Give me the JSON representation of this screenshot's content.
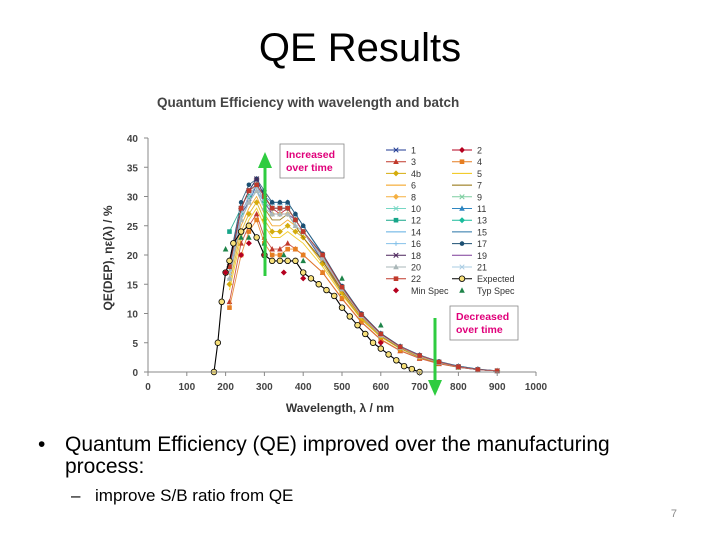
{
  "slide": {
    "title": "QE Results",
    "bullet_1": "Quantum Efficiency (QE) improved over the manufacturing process:",
    "bullet_2": "improve S/B ratio from QE",
    "page_number": "7"
  },
  "chart_data": {
    "type": "line",
    "title": "Quantum Efficiency with wavelength and batch",
    "xlabel": "Wavelength, λ / nm",
    "ylabel": "QE(DEP), ηε(λ) / %",
    "xlim": [
      0,
      1000
    ],
    "ylim": [
      0,
      40
    ],
    "x_ticks": [
      "0",
      "100",
      "200",
      "300",
      "400",
      "500",
      "600",
      "700",
      "800",
      "900",
      "1000"
    ],
    "y_ticks": [
      "0",
      "5",
      "10",
      "15",
      "20",
      "25",
      "30",
      "35",
      "40"
    ],
    "grid": false,
    "legend_position": "top-right",
    "annotations": [
      {
        "text": "Increased over time",
        "color": "#e0007a",
        "arrow": "up"
      },
      {
        "text": "Decreased over time",
        "color": "#e0007a",
        "arrow": "down"
      }
    ],
    "series": [
      {
        "name": "1",
        "color": "#1f3a93",
        "marker": "x",
        "x": [
          210,
          240,
          260,
          280,
          300,
          320,
          340,
          360,
          380,
          400,
          450,
          500,
          550,
          600,
          650,
          700,
          750,
          800,
          850,
          900
        ],
        "y": [
          17,
          27,
          29,
          32,
          29,
          28,
          28,
          28,
          26,
          24,
          19,
          13.5,
          9,
          6,
          4,
          2.5,
          1.5,
          0.8,
          0.4,
          0.2
        ]
      },
      {
        "name": "2",
        "color": "#b5001f",
        "marker": "diamond",
        "x": [
          210,
          240,
          260,
          280,
          300,
          320,
          340,
          360,
          380,
          400,
          450,
          500,
          550,
          600,
          650,
          700,
          750,
          800,
          850,
          900
        ],
        "y": [
          18,
          28,
          31,
          33,
          30,
          28,
          27,
          28,
          26,
          24,
          19.5,
          14,
          9.5,
          6.2,
          4.2,
          2.7,
          1.6,
          0.9,
          0.4,
          0.2
        ]
      },
      {
        "name": "3",
        "color": "#c0392b",
        "marker": "triangle",
        "x": [
          210,
          240,
          260,
          280,
          300,
          320,
          340,
          360,
          380,
          400,
          450,
          500,
          550,
          600,
          650,
          700,
          750,
          800,
          850,
          900
        ],
        "y": [
          12,
          22,
          25,
          27,
          23,
          21,
          21,
          22,
          21,
          20,
          17,
          12.5,
          8.5,
          5.5,
          3.6,
          2.3,
          1.4,
          0.8,
          0.4,
          0.2
        ]
      },
      {
        "name": "4",
        "color": "#e67e22",
        "marker": "square",
        "x": [
          210,
          240,
          260,
          280,
          300,
          320,
          340,
          360,
          380,
          400,
          450,
          500,
          550,
          600,
          650,
          700,
          750,
          800,
          850,
          900
        ],
        "y": [
          11,
          20,
          24,
          26,
          22,
          20,
          20,
          21,
          21,
          20,
          17,
          12.6,
          8.6,
          5.6,
          3.7,
          2.4,
          1.5,
          0.8,
          0.4,
          0.2
        ]
      },
      {
        "name": "4b",
        "color": "#d4ac0d",
        "marker": "diamond",
        "x": [
          210,
          240,
          260,
          280,
          300,
          320,
          340,
          360,
          380,
          400,
          450,
          500,
          550,
          600,
          650,
          700,
          750,
          800,
          850,
          900
        ],
        "y": [
          15,
          24,
          27,
          29,
          26,
          24,
          24,
          25,
          24,
          23,
          18.5,
          13.5,
          9.2,
          6,
          4,
          2.6,
          1.6,
          0.9,
          0.4,
          0.2
        ]
      },
      {
        "name": "5",
        "color": "#f1c40f",
        "marker": "none",
        "x": [
          210,
          240,
          260,
          280,
          300,
          320,
          340,
          360,
          380,
          400,
          450,
          500,
          550,
          600,
          650,
          700,
          750,
          800,
          850,
          900
        ],
        "y": [
          14,
          23,
          26,
          28,
          25,
          23,
          23,
          24,
          23,
          22,
          18,
          13.2,
          9,
          6,
          4,
          2.6,
          1.6,
          0.9,
          0.4,
          0.2
        ]
      },
      {
        "name": "6",
        "color": "#f39c12",
        "marker": "none",
        "x": [
          210,
          240,
          260,
          280,
          300,
          320,
          340,
          360,
          380,
          400,
          450,
          500,
          550,
          600,
          650,
          700,
          750,
          800,
          850,
          900
        ],
        "y": [
          16,
          25,
          28,
          30,
          27,
          25,
          25,
          26,
          25,
          23,
          19,
          13.8,
          9.4,
          6.2,
          4.1,
          2.7,
          1.6,
          0.9,
          0.4,
          0.2
        ]
      },
      {
        "name": "7",
        "color": "#8e6b00",
        "marker": "none",
        "x": [
          210,
          240,
          260,
          280,
          300,
          320,
          340,
          360,
          380,
          400,
          450,
          500,
          550,
          600,
          650,
          700,
          750,
          800,
          850,
          900
        ],
        "y": [
          16,
          26,
          29,
          31,
          28,
          26,
          26,
          27,
          25,
          23,
          19,
          14,
          9.5,
          6.2,
          4.1,
          2.7,
          1.6,
          0.9,
          0.4,
          0.2
        ]
      },
      {
        "name": "8",
        "color": "#f5b041",
        "marker": "diamond",
        "x": [
          210,
          240,
          260,
          280,
          300,
          320,
          340,
          360,
          380,
          400,
          450,
          500,
          550,
          600,
          650,
          700,
          750,
          800,
          850,
          900
        ],
        "y": [
          17,
          27,
          30,
          32,
          29,
          27,
          27,
          27,
          26,
          24,
          19.5,
          14.2,
          9.6,
          6.3,
          4.2,
          2.7,
          1.6,
          0.9,
          0.4,
          0.2
        ]
      },
      {
        "name": "9",
        "color": "#7dcea0",
        "marker": "star",
        "x": [
          210,
          240,
          260,
          280,
          300,
          320,
          340,
          360,
          380,
          400,
          450,
          500,
          550,
          600,
          650,
          700,
          750,
          800,
          850,
          900
        ],
        "y": [
          18,
          27,
          30,
          32,
          29,
          28,
          28,
          28,
          26,
          24,
          19.8,
          14.4,
          9.7,
          6.4,
          4.3,
          2.8,
          1.7,
          0.9,
          0.4,
          0.2
        ]
      },
      {
        "name": "10",
        "color": "#76d7c4",
        "marker": "x",
        "x": [
          210,
          240,
          260,
          280,
          300,
          320,
          340,
          360,
          380,
          400,
          450,
          500,
          550,
          600,
          650,
          700,
          750,
          800,
          850,
          900
        ],
        "y": [
          18,
          28,
          31,
          33,
          30,
          28,
          28,
          28,
          26,
          24,
          20,
          14.5,
          9.8,
          6.5,
          4.3,
          2.8,
          1.7,
          0.9,
          0.4,
          0.2
        ]
      },
      {
        "name": "11",
        "color": "#2e86c1",
        "marker": "triangle",
        "x": [
          210,
          240,
          260,
          280,
          300,
          320,
          340,
          360,
          380,
          400,
          450,
          500,
          550,
          600,
          650,
          700,
          750,
          800,
          850,
          900
        ],
        "y": [
          19,
          28,
          31,
          33,
          30,
          29,
          29,
          29,
          27,
          25,
          20,
          14.6,
          9.9,
          6.6,
          4.4,
          2.9,
          1.7,
          1,
          0.5,
          0.2
        ]
      },
      {
        "name": "12",
        "color": "#17a589",
        "marker": "square",
        "x": [
          210,
          240,
          260,
          280,
          300,
          320,
          340,
          360,
          380,
          400,
          450,
          500,
          550,
          600,
          650,
          700,
          750,
          800,
          850,
          900
        ],
        "y": [
          24,
          28,
          31,
          32,
          29,
          28,
          28,
          28,
          26,
          24,
          20,
          14.5,
          9.8,
          6.5,
          4.3,
          2.8,
          1.7,
          0.9,
          0.4,
          0.2
        ]
      },
      {
        "name": "13",
        "color": "#1abc9c",
        "marker": "diamond",
        "x": [
          210,
          240,
          260,
          280,
          300,
          320,
          340,
          360,
          380,
          400,
          450,
          500,
          550,
          600,
          650,
          700,
          750,
          800,
          850,
          900
        ],
        "y": [
          18,
          27,
          30,
          32,
          29,
          28,
          28,
          28,
          26,
          24,
          20,
          14.5,
          9.8,
          6.5,
          4.3,
          2.8,
          1.7,
          0.9,
          0.4,
          0.2
        ]
      },
      {
        "name": "14",
        "color": "#5dade2",
        "marker": "none",
        "x": [
          210,
          240,
          260,
          280,
          300,
          320,
          340,
          360,
          380,
          400,
          450,
          500,
          550,
          600,
          650,
          700,
          750,
          800,
          850,
          900
        ],
        "y": [
          17,
          27,
          30,
          31,
          29,
          27,
          27,
          27,
          26,
          24,
          19.8,
          14.4,
          9.7,
          6.4,
          4.3,
          2.8,
          1.7,
          0.9,
          0.4,
          0.2
        ]
      },
      {
        "name": "15",
        "color": "#2874a6",
        "marker": "none",
        "x": [
          210,
          240,
          260,
          280,
          300,
          320,
          340,
          360,
          380,
          400,
          450,
          500,
          550,
          600,
          650,
          700,
          750,
          800,
          850,
          900
        ],
        "y": [
          18,
          28,
          31,
          32,
          30,
          28,
          28,
          28,
          26,
          24,
          20,
          14.5,
          9.8,
          6.5,
          4.3,
          2.8,
          1.7,
          0.9,
          0.4,
          0.2
        ]
      },
      {
        "name": "16",
        "color": "#85c1e9",
        "marker": "plus",
        "x": [
          210,
          240,
          260,
          280,
          300,
          320,
          340,
          360,
          380,
          400,
          450,
          500,
          550,
          600,
          650,
          700,
          750,
          800,
          850,
          900
        ],
        "y": [
          16,
          26,
          29,
          31,
          28,
          27,
          27,
          27,
          25,
          24,
          19.5,
          14.2,
          9.6,
          6.3,
          4.2,
          2.7,
          1.6,
          0.9,
          0.4,
          0.2
        ]
      },
      {
        "name": "17",
        "color": "#1b4f72",
        "marker": "circle",
        "x": [
          210,
          240,
          260,
          280,
          300,
          320,
          340,
          360,
          380,
          400,
          450,
          500,
          550,
          600,
          650,
          700,
          750,
          800,
          850,
          900
        ],
        "y": [
          19,
          29,
          32,
          33,
          31,
          29,
          29,
          29,
          27,
          25,
          20.2,
          14.7,
          10,
          6.6,
          4.4,
          2.9,
          1.8,
          1,
          0.5,
          0.2
        ]
      },
      {
        "name": "18",
        "color": "#4a235a",
        "marker": "x",
        "x": [
          210,
          240,
          260,
          280,
          300,
          320,
          340,
          360,
          380,
          400,
          450,
          500,
          550,
          600,
          650,
          700,
          750,
          800,
          850,
          900
        ],
        "y": [
          18,
          28,
          31,
          33,
          30,
          28,
          28,
          28,
          26,
          24,
          20,
          14.5,
          9.8,
          6.5,
          4.3,
          2.8,
          1.7,
          0.9,
          0.4,
          0.2
        ]
      },
      {
        "name": "19",
        "color": "#7d3c98",
        "marker": "none",
        "x": [
          210,
          240,
          260,
          280,
          300,
          320,
          340,
          360,
          380,
          400,
          450,
          500,
          550,
          600,
          650,
          700,
          750,
          800,
          850,
          900
        ],
        "y": [
          17,
          27,
          30,
          32,
          29,
          27,
          27,
          27,
          26,
          24,
          19.8,
          14.4,
          9.7,
          6.4,
          4.3,
          2.8,
          1.7,
          0.9,
          0.4,
          0.2
        ]
      },
      {
        "name": "20",
        "color": "#aab7b8",
        "marker": "triangle",
        "x": [
          210,
          240,
          260,
          280,
          300,
          320,
          340,
          360,
          380,
          400,
          450,
          500,
          550,
          600,
          650,
          700,
          750,
          800,
          850,
          900
        ],
        "y": [
          16,
          26,
          29,
          31,
          28,
          27,
          27,
          27,
          25,
          24,
          19.5,
          14.2,
          9.6,
          6.3,
          4.2,
          2.7,
          1.6,
          0.9,
          0.4,
          0.2
        ]
      },
      {
        "name": "21",
        "color": "#a9cce3",
        "marker": "x",
        "x": [
          210,
          240,
          260,
          280,
          300,
          320,
          340,
          360,
          380,
          400,
          450,
          500,
          550,
          600,
          650,
          700,
          750,
          800,
          850,
          900
        ],
        "y": [
          17,
          27,
          30,
          32,
          29,
          28,
          28,
          28,
          26,
          24,
          19.8,
          14.4,
          9.7,
          6.4,
          4.3,
          2.8,
          1.7,
          0.9,
          0.4,
          0.2
        ]
      },
      {
        "name": "22",
        "color": "#c0392b",
        "marker": "square",
        "x": [
          210,
          240,
          260,
          280,
          300,
          320,
          340,
          360,
          380,
          400,
          450,
          500,
          550,
          600,
          650,
          700,
          750,
          800,
          850,
          900
        ],
        "y": [
          18,
          28,
          31,
          32,
          30,
          28,
          28,
          28,
          26,
          24,
          20,
          14.5,
          9.8,
          6.5,
          4.3,
          2.8,
          1.7,
          0.9,
          0.4,
          0.2
        ]
      },
      {
        "name": "Expected",
        "color": "#000000",
        "marker": "open-circle",
        "x": [
          170,
          180,
          190,
          200,
          210,
          220,
          240,
          260,
          280,
          300,
          320,
          340,
          360,
          380,
          400,
          420,
          440,
          460,
          480,
          500,
          520,
          540,
          560,
          580,
          600,
          620,
          640,
          660,
          680,
          700
        ],
        "y": [
          0,
          5,
          12,
          17,
          19,
          22,
          24,
          25,
          23,
          20,
          19,
          19,
          19,
          19,
          17,
          16,
          15,
          14,
          13,
          11,
          9.5,
          8,
          6.5,
          5,
          4,
          3,
          2,
          1,
          0.5,
          0
        ]
      },
      {
        "name": "Min Spec",
        "color": "#b5001f",
        "marker": "diamond",
        "x": [
          200,
          240,
          260,
          300,
          350,
          400,
          600
        ],
        "y": [
          17,
          20,
          22,
          20,
          17,
          16,
          5
        ]
      },
      {
        "name": "Typ Spec",
        "color": "#1e8449",
        "marker": "triangle",
        "x": [
          200,
          240,
          260,
          300,
          350,
          400,
          500,
          600
        ],
        "y": [
          21,
          23,
          23,
          22,
          20,
          19,
          16,
          8
        ]
      }
    ]
  }
}
